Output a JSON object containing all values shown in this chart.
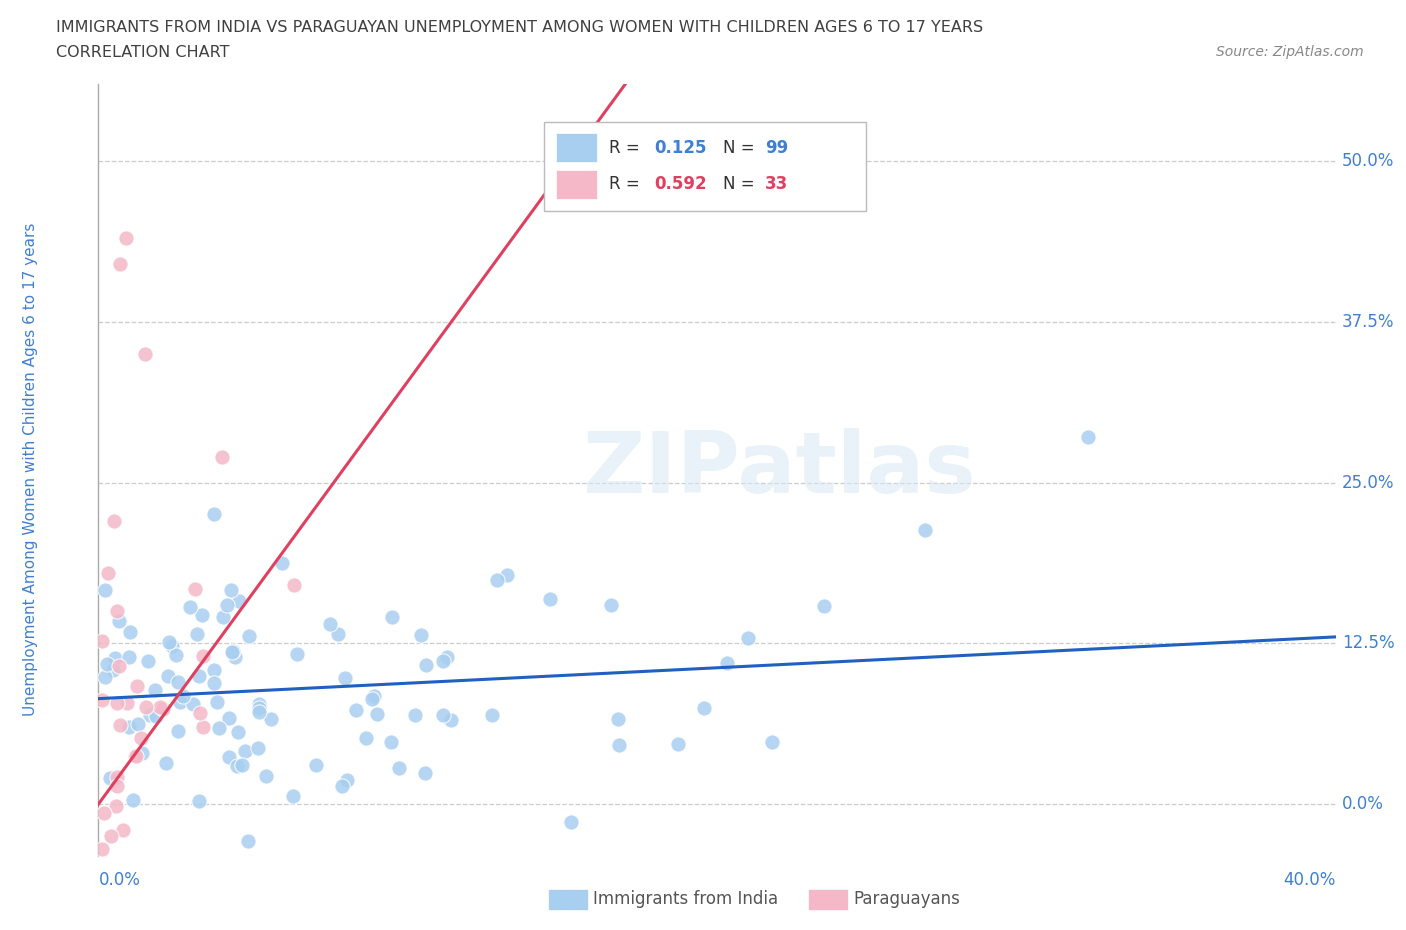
{
  "title_line1": "IMMIGRANTS FROM INDIA VS PARAGUAYAN UNEMPLOYMENT AMONG WOMEN WITH CHILDREN AGES 6 TO 17 YEARS",
  "title_line2": "CORRELATION CHART",
  "source_text": "Source: ZipAtlas.com",
  "ylabel_axis": "Unemployment Among Women with Children Ages 6 to 17 years",
  "watermark": "ZIPatlas",
  "blue_color": "#a8cef0",
  "pink_color": "#f4b8c8",
  "blue_line_color": "#2060c0",
  "pink_line_color": "#e04060",
  "title_color": "#404040",
  "axis_label_color": "#4080d0",
  "source_color": "#888888",
  "background_color": "#ffffff",
  "grid_color": "#cccccc",
  "xmin": 0.0,
  "xmax": 0.4,
  "ymin": -0.04,
  "ymax": 0.56,
  "ytick_vals": [
    0.0,
    0.125,
    0.25,
    0.375,
    0.5
  ],
  "ytick_labels": [
    "0.0%",
    "12.5%",
    "25.0%",
    "37.5%",
    "50.0%"
  ],
  "r_india": 0.125,
  "n_india": 99,
  "r_paraguay": 0.592,
  "n_paraguay": 33
}
